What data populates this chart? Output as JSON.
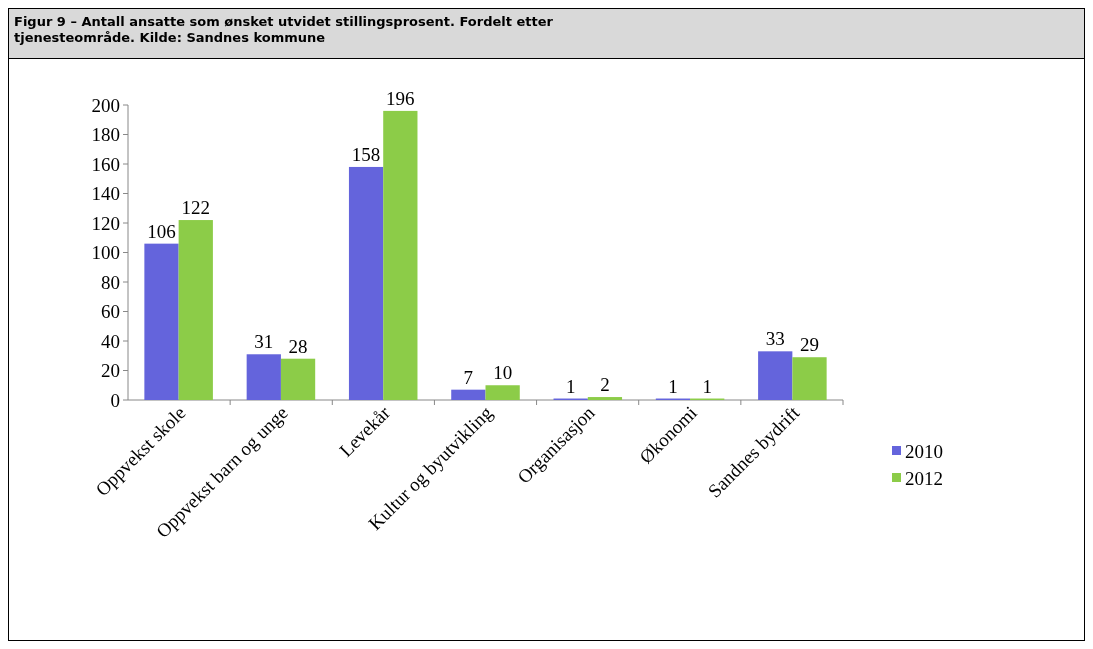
{
  "chart_data": {
    "type": "bar",
    "title": "Figur 9 – Antall ansatte som ønsket utvidet stillingsprosent. Fordelt etter tjenesteområde. Kilde: Sandnes kommune",
    "categories": [
      "Oppvekst skole",
      "Oppvekst barn og unge",
      "Levekår",
      "Kultur og byutvikling",
      "Organisasjon",
      "Økonomi",
      "Sandnes bydrift"
    ],
    "series": [
      {
        "name": "2010",
        "color": "#6464dc",
        "values": [
          106,
          31,
          158,
          7,
          1,
          1,
          33
        ]
      },
      {
        "name": "2012",
        "color": "#8ccc48",
        "values": [
          122,
          28,
          196,
          10,
          2,
          1,
          29
        ]
      }
    ],
    "ylim": [
      0,
      200
    ],
    "yticks": [
      0,
      20,
      40,
      60,
      80,
      100,
      120,
      140,
      160,
      180,
      200
    ],
    "data_labels": true,
    "legend": "right",
    "grid": false
  }
}
